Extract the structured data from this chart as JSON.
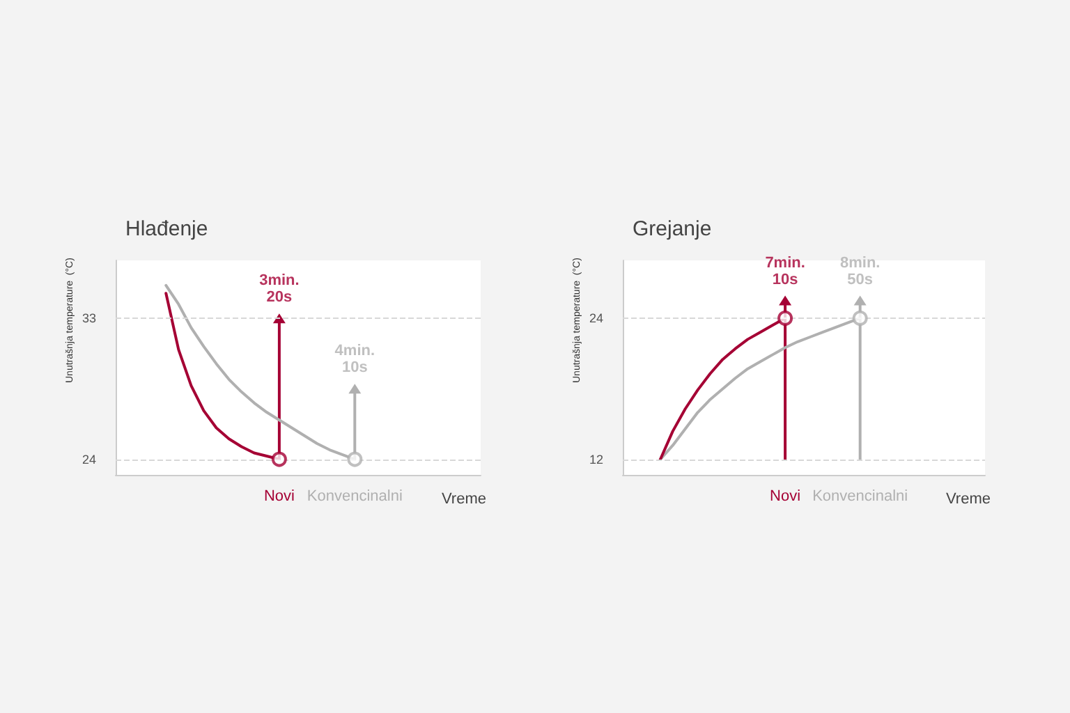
{
  "chart_data": [
    {
      "type": "line",
      "title": "Hlađenje",
      "xlabel": "Vreme",
      "ylabel": "Unutrašnja temperature  (°C)",
      "ylim": [
        23,
        36.7
      ],
      "yticks": [
        24,
        33
      ],
      "grid": "y",
      "categories": [
        null,
        null,
        null,
        null,
        null,
        null,
        null,
        null,
        null,
        null,
        null,
        null,
        null,
        "Novi",
        null,
        null,
        null,
        null,
        null,
        "Konvencinalni",
        null,
        null,
        null,
        null,
        null,
        null,
        null,
        null,
        null,
        null
      ],
      "series": [
        {
          "color": "#b0b0b0",
          "marker": "none",
          "values": [
            null,
            null,
            null,
            null,
            35.1,
            33.9,
            32.4,
            31.2,
            30.1,
            29.1,
            28.3,
            27.6,
            27.0,
            26.5,
            26.0,
            25.5,
            25.0,
            24.6,
            24.3,
            24,
            null,
            null,
            null,
            null,
            null,
            null,
            null,
            null,
            null,
            null
          ]
        },
        {
          "color": "#a50034",
          "marker": "none",
          "values": [
            null,
            null,
            null,
            null,
            34.6,
            31.0,
            28.7,
            27.1,
            26.0,
            25.3,
            24.8,
            24.4,
            24.2,
            24,
            null,
            null,
            null,
            null,
            null,
            null,
            null,
            null,
            null,
            null,
            null,
            null,
            null,
            null,
            null,
            null
          ]
        },
        {
          "color": "#a50034",
          "marker": "triangle",
          "x": [
            "Novi",
            "Novi"
          ],
          "values": [
            24,
            33
          ]
        },
        {
          "color": "#b0b0b0",
          "marker": "triangle",
          "x": [
            "Konvencinalni",
            "Konvencinalni"
          ],
          "values": [
            24,
            28.5
          ]
        },
        {
          "type": "scatter",
          "color": "#a50034",
          "marker": "circle",
          "x": [
            "Novi"
          ],
          "values": [
            24
          ]
        },
        {
          "type": "scatter",
          "color": "#b0b0b0",
          "marker": "circle",
          "x": [
            "Konvencinalni"
          ],
          "values": [
            24
          ]
        }
      ],
      "annotations": [
        {
          "text": "3min.\n20s",
          "x": "Novi",
          "y": 33
        },
        {
          "text": "4min.\n10s",
          "x": "Konvencinalni",
          "y": 28.5
        }
      ]
    },
    {
      "type": "line",
      "title": "Grejanje",
      "xlabel": "Vreme",
      "ylabel": "Unutrašnja temperature  (°C)",
      "ylim": [
        10.7,
        28.9
      ],
      "yticks": [
        12,
        24
      ],
      "grid": "y",
      "categories": [
        null,
        null,
        null,
        null,
        null,
        null,
        null,
        null,
        null,
        null,
        null,
        null,
        null,
        "Novi",
        null,
        null,
        null,
        null,
        null,
        "Konvencinalni",
        null,
        null,
        null,
        null,
        null,
        null,
        null,
        null,
        null,
        null
      ],
      "series": [
        {
          "color": "#b0b0b0",
          "marker": "none",
          "values": [
            null,
            null,
            null,
            12,
            13.2,
            14.6,
            16.0,
            17.1,
            18.0,
            18.9,
            19.7,
            20.3,
            20.9,
            21.5,
            22.0,
            22.4,
            22.8,
            23.2,
            23.6,
            24,
            null,
            null,
            null,
            null,
            null,
            null,
            null,
            null,
            null,
            null
          ]
        },
        {
          "color": "#a50034",
          "marker": "none",
          "values": [
            null,
            null,
            null,
            12,
            14.4,
            16.3,
            17.9,
            19.3,
            20.5,
            21.4,
            22.2,
            22.8,
            23.4,
            24,
            null,
            null,
            null,
            null,
            null,
            null,
            null,
            null,
            null,
            null,
            null,
            null,
            null,
            null,
            null,
            null
          ]
        },
        {
          "color": "#a50034",
          "marker": "triangle",
          "x": [
            "Novi",
            "Novi"
          ],
          "values": [
            12,
            25.5
          ]
        },
        {
          "color": "#b0b0b0",
          "marker": "triangle",
          "x": [
            "Konvencinalni",
            "Konvencinalni"
          ],
          "values": [
            12,
            25.5
          ]
        },
        {
          "type": "scatter",
          "color": "#a50034",
          "marker": "circle",
          "x": [
            "Novi"
          ],
          "values": [
            24
          ]
        },
        {
          "type": "scatter",
          "color": "#b0b0b0",
          "marker": "circle",
          "x": [
            "Konvencinalni"
          ],
          "values": [
            24
          ]
        }
      ],
      "annotations": [
        {
          "text": "7min.\n10s",
          "x": "Novi",
          "y": 25.5
        },
        {
          "text": "8min.\n50s",
          "x": "Konvencinalni",
          "y": 25.5
        }
      ]
    }
  ]
}
